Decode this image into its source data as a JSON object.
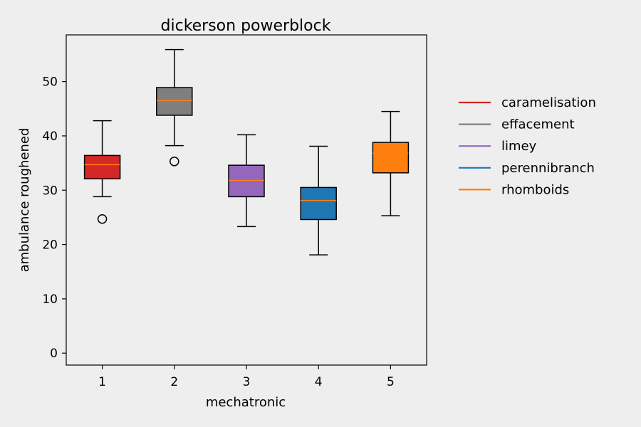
{
  "chart_data": {
    "type": "box",
    "title": "dickerson powerblock",
    "xlabel": "mechatronic",
    "ylabel": "ambulance roughened",
    "categories": [
      "1",
      "2",
      "3",
      "4",
      "5"
    ],
    "ylim": [
      -2.2,
      58.6
    ],
    "yticks": [
      0,
      10,
      20,
      30,
      40,
      50
    ],
    "grid": false,
    "legend_position": "right",
    "median_color": "#ff7f0e",
    "series": [
      {
        "name": "caramelisation",
        "color": "#d62728",
        "whisker_low": 28.8,
        "q1": 32.1,
        "median": 34.7,
        "q3": 36.4,
        "whisker_high": 42.8,
        "outliers": [
          24.7
        ]
      },
      {
        "name": "effacement",
        "color": "#7f7f7f",
        "whisker_low": 38.2,
        "q1": 43.8,
        "median": 46.5,
        "q3": 48.9,
        "whisker_high": 55.9,
        "outliers": [
          35.3
        ]
      },
      {
        "name": "limey",
        "color": "#9467bd",
        "whisker_low": 23.3,
        "q1": 28.8,
        "median": 31.8,
        "q3": 34.6,
        "whisker_high": 40.2,
        "outliers": []
      },
      {
        "name": "perennibranch",
        "color": "#1f77b4",
        "whisker_low": 18.1,
        "q1": 24.6,
        "median": 28.1,
        "q3": 30.5,
        "whisker_high": 38.1,
        "outliers": []
      },
      {
        "name": "rhomboids",
        "color": "#ff7f0e",
        "whisker_low": 25.3,
        "q1": 33.2,
        "median": 36.8,
        "q3": 38.8,
        "whisker_high": 44.5,
        "outliers": []
      }
    ]
  }
}
